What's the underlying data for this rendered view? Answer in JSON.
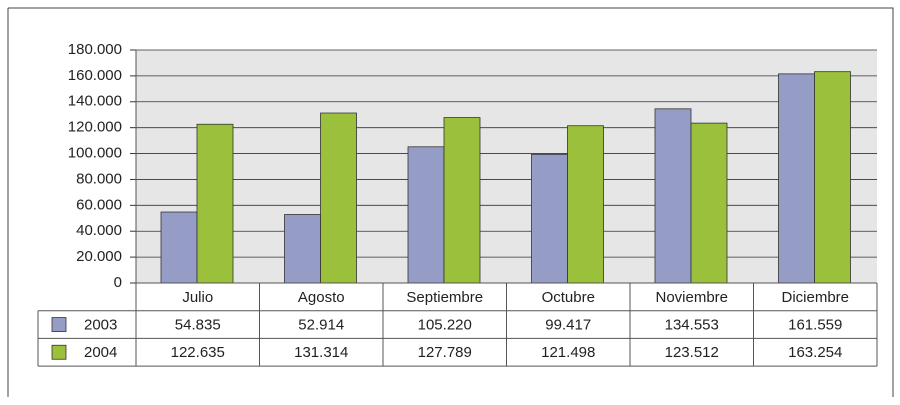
{
  "chart_data": {
    "type": "bar",
    "categories": [
      "Julio",
      "Agosto",
      "Septiembre",
      "Octubre",
      "Noviembre",
      "Diciembre"
    ],
    "series": [
      {
        "name": "2003",
        "color": "#959dc7",
        "values": [
          54835,
          52914,
          105220,
          99417,
          134553,
          161559
        ],
        "value_labels": [
          "54.835",
          "52.914",
          "105.220",
          "99.417",
          "134.553",
          "161.559"
        ]
      },
      {
        "name": "2004",
        "color": "#9bc13c",
        "values": [
          122635,
          131314,
          127789,
          121498,
          123512,
          163254
        ],
        "value_labels": [
          "122.635",
          "131.314",
          "127.789",
          "121.498",
          "123.512",
          "163.254"
        ]
      }
    ],
    "ylim": [
      0,
      180000
    ],
    "yticks": [
      0,
      {
        "value": 20000,
        "label": "20.000"
      },
      {
        "value": 40000,
        "label": "40.000"
      },
      {
        "value": 60000,
        "label": "60.000"
      },
      {
        "value": 80000,
        "label": "80.000"
      },
      {
        "value": 100000,
        "label": "100.000"
      },
      {
        "value": 120000,
        "label": "120.000"
      },
      {
        "value": 140000,
        "label": "140.000"
      },
      {
        "value": 160000,
        "label": "160.000"
      },
      {
        "value": 180000,
        "label": "180.000"
      }
    ],
    "grid": true
  }
}
